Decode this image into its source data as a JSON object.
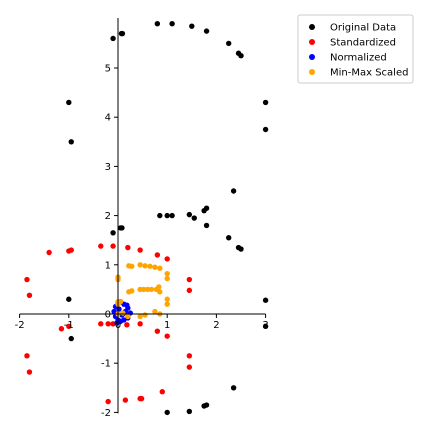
{
  "chart_data": {
    "type": "scatter",
    "xlim": [
      -2,
      3
    ],
    "ylim": [
      -2,
      6
    ],
    "x_ticks": [
      "-2",
      "-1",
      "0",
      "1",
      "2",
      "3"
    ],
    "y_ticks": [
      "-2",
      "-1",
      "0",
      "1",
      "2",
      "3",
      "4",
      "5"
    ],
    "spines": "centered at origin",
    "grid": false,
    "legend_position": "top-right",
    "series": [
      {
        "name": "Original Data",
        "color": "#000000",
        "points": [
          [
            0.8,
            5.9
          ],
          [
            1.1,
            5.9
          ],
          [
            1.5,
            5.85
          ],
          [
            1.8,
            5.75
          ],
          [
            -0.1,
            5.6
          ],
          [
            0.07,
            5.7
          ],
          [
            0.09,
            5.7
          ],
          [
            2.25,
            5.5
          ],
          [
            2.45,
            5.3
          ],
          [
            2.5,
            5.25
          ],
          [
            -1.0,
            4.3
          ],
          [
            3.0,
            4.3
          ],
          [
            3.0,
            3.75
          ],
          [
            -0.95,
            3.5
          ],
          [
            2.35,
            2.5
          ],
          [
            1.8,
            2.15
          ],
          [
            1.75,
            2.1
          ],
          [
            0.85,
            2.0
          ],
          [
            1.0,
            2.0
          ],
          [
            1.1,
            2.0
          ],
          [
            1.45,
            2.02
          ],
          [
            1.55,
            1.95
          ],
          [
            0.05,
            1.75
          ],
          [
            0.08,
            1.75
          ],
          [
            1.8,
            1.8
          ],
          [
            -0.1,
            1.65
          ],
          [
            2.25,
            1.55
          ],
          [
            2.45,
            1.35
          ],
          [
            2.5,
            1.32
          ],
          [
            -1.0,
            0.3
          ],
          [
            3.0,
            0.28
          ],
          [
            3.0,
            -0.25
          ],
          [
            -0.95,
            -0.5
          ],
          [
            2.35,
            -1.5
          ],
          [
            1.8,
            -1.85
          ],
          [
            1.75,
            -1.87
          ],
          [
            1.0,
            -2.0
          ],
          [
            1.45,
            -1.98
          ]
        ]
      },
      {
        "name": "Standardized",
        "color": "#ff0000",
        "points": [
          [
            -1.85,
            0.7
          ],
          [
            -1.8,
            0.38
          ],
          [
            -1.4,
            1.25
          ],
          [
            -1.0,
            1.28
          ],
          [
            -0.95,
            1.3
          ],
          [
            -0.35,
            1.38
          ],
          [
            -0.1,
            1.38
          ],
          [
            0.2,
            1.35
          ],
          [
            0.45,
            1.3
          ],
          [
            0.8,
            1.2
          ],
          [
            1.0,
            1.12
          ],
          [
            1.45,
            0.7
          ],
          [
            1.45,
            0.48
          ],
          [
            -1.85,
            -0.85
          ],
          [
            -1.8,
            -1.18
          ],
          [
            -1.15,
            -0.3
          ],
          [
            -1.0,
            -0.25
          ],
          [
            -0.35,
            -0.2
          ],
          [
            -0.2,
            -0.2
          ],
          [
            -0.1,
            -0.2
          ],
          [
            0.18,
            -0.22
          ],
          [
            0.45,
            -0.2
          ],
          [
            0.8,
            -0.35
          ],
          [
            1.0,
            -0.45
          ],
          [
            1.45,
            -0.85
          ],
          [
            1.45,
            -1.08
          ],
          [
            0.9,
            -1.58
          ],
          [
            0.45,
            -1.72
          ],
          [
            0.48,
            -1.72
          ],
          [
            0.15,
            -1.75
          ],
          [
            -0.2,
            -1.78
          ]
        ]
      },
      {
        "name": "Normalized",
        "color": "#0000ff",
        "points": [
          [
            0.0,
            0.22
          ],
          [
            0.05,
            0.25
          ],
          [
            0.12,
            0.2
          ],
          [
            0.2,
            0.12
          ],
          [
            0.25,
            0.02
          ],
          [
            0.2,
            -0.08
          ],
          [
            0.12,
            -0.12
          ],
          [
            0.05,
            -0.15
          ],
          [
            0.0,
            -0.12
          ],
          [
            -0.05,
            0.15
          ],
          [
            -0.08,
            0.05
          ],
          [
            -0.05,
            -0.05
          ],
          [
            0.08,
            -0.02
          ],
          [
            0.15,
            0.05
          ],
          [
            0.02,
            0.1
          ],
          [
            -0.02,
            -0.18
          ],
          [
            0.18,
            0.18
          ],
          [
            0.1,
            0.0
          ]
        ]
      },
      {
        "name": "Min-Max Scaled",
        "color": "#ffa500",
        "points": [
          [
            0.0,
            0.75
          ],
          [
            0.0,
            0.7
          ],
          [
            0.22,
            0.98
          ],
          [
            0.28,
            0.97
          ],
          [
            0.45,
            1.0
          ],
          [
            0.55,
            0.98
          ],
          [
            0.65,
            0.97
          ],
          [
            0.75,
            0.95
          ],
          [
            0.85,
            0.93
          ],
          [
            1.0,
            0.82
          ],
          [
            1.0,
            0.72
          ],
          [
            0.22,
            0.45
          ],
          [
            0.28,
            0.47
          ],
          [
            0.45,
            0.5
          ],
          [
            0.52,
            0.5
          ],
          [
            0.6,
            0.5
          ],
          [
            0.68,
            0.5
          ],
          [
            0.78,
            0.5
          ],
          [
            0.85,
            0.45
          ],
          [
            0.83,
            0.55
          ],
          [
            1.0,
            0.3
          ],
          [
            1.0,
            0.2
          ],
          [
            0.0,
            0.25
          ],
          [
            0.0,
            0.2
          ],
          [
            0.05,
            0.25
          ],
          [
            0.75,
            0.05
          ],
          [
            0.85,
            0.0
          ],
          [
            0.45,
            -0.05
          ],
          [
            0.55,
            -0.02
          ],
          [
            0.2,
            -0.05
          ],
          [
            0.0,
            0.0
          ],
          [
            0.1,
            0.02
          ]
        ]
      }
    ]
  }
}
